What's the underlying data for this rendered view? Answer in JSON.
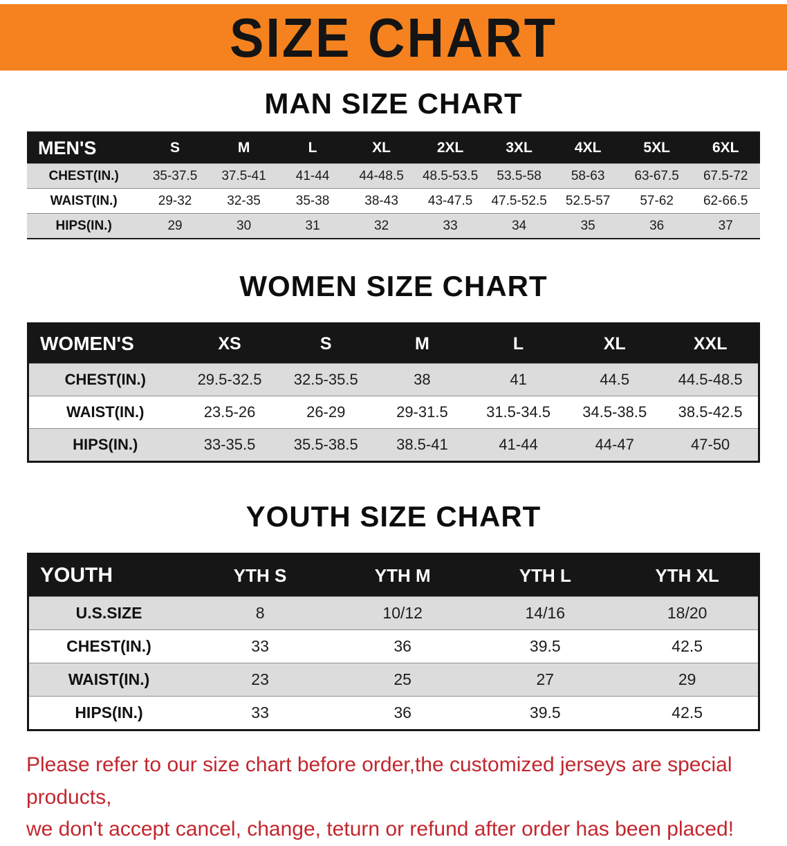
{
  "banner": {
    "title": "SIZE CHART"
  },
  "colors": {
    "banner_bg": "#F5821F",
    "header_bg": "#161616",
    "row_alt": "#DCDCDC",
    "note_red": "#C2262E"
  },
  "sections": {
    "men": {
      "heading": "MAN SIZE CHART",
      "table": {
        "header": [
          "MEN'S",
          "S",
          "M",
          "L",
          "XL",
          "2XL",
          "3XL",
          "4XL",
          "5XL",
          "6XL"
        ],
        "rows": [
          [
            "CHEST(IN.)",
            "35-37.5",
            "37.5-41",
            "41-44",
            "44-48.5",
            "48.5-53.5",
            "53.5-58",
            "58-63",
            "63-67.5",
            "67.5-72"
          ],
          [
            "WAIST(IN.)",
            "29-32",
            "32-35",
            "35-38",
            "38-43",
            "43-47.5",
            "47.5-52.5",
            "52.5-57",
            "57-62",
            "62-66.5"
          ],
          [
            "HIPS(IN.)",
            "29",
            "30",
            "31",
            "32",
            "33",
            "34",
            "35",
            "36",
            "37"
          ]
        ]
      }
    },
    "women": {
      "heading": "WOMEN SIZE CHART",
      "table": {
        "header": [
          "WOMEN'S",
          "XS",
          "S",
          "M",
          "L",
          "XL",
          "XXL"
        ],
        "rows": [
          [
            "CHEST(IN.)",
            "29.5-32.5",
            "32.5-35.5",
            "38",
            "41",
            "44.5",
            "44.5-48.5"
          ],
          [
            "WAIST(IN.)",
            "23.5-26",
            "26-29",
            "29-31.5",
            "31.5-34.5",
            "34.5-38.5",
            "38.5-42.5"
          ],
          [
            "HIPS(IN.)",
            "33-35.5",
            "35.5-38.5",
            "38.5-41",
            "41-44",
            "44-47",
            "47-50"
          ]
        ]
      }
    },
    "youth": {
      "heading": "YOUTH SIZE CHART",
      "table": {
        "header": [
          "YOUTH",
          "YTH S",
          "YTH M",
          "YTH L",
          "YTH XL"
        ],
        "rows": [
          [
            "U.S.SIZE",
            "8",
            "10/12",
            "14/16",
            "18/20"
          ],
          [
            "CHEST(IN.)",
            "33",
            "36",
            "39.5",
            "42.5"
          ],
          [
            "WAIST(IN.)",
            "23",
            "25",
            "27",
            "29"
          ],
          [
            "HIPS(IN.)",
            "33",
            "36",
            "39.5",
            "42.5"
          ]
        ]
      }
    }
  },
  "note": {
    "line1": "Please refer to our size chart before order,the customized jerseys are special products,",
    "line2": "we don't accept cancel, change, teturn or refund after order has been placed!"
  }
}
